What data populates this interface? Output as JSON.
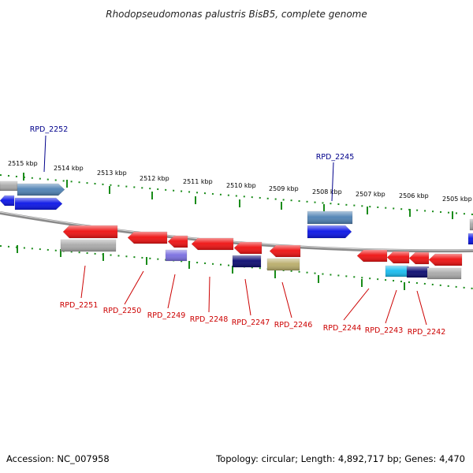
{
  "title": "Rhodopseudomonas palustris BisB5, complete genome",
  "footer": {
    "accession": "Accession: NC_007958",
    "summary": "Topology: circular; Length: 4,892,717 bp; Genes: 4,470"
  },
  "scale_labels": [
    "2515 kbp",
    "2514 kbp",
    "2513 kbp",
    "2512 kbp",
    "2511 kbp",
    "2510 kbp",
    "2509 kbp",
    "2508 kbp",
    "2507 kbp",
    "2506 kbp",
    "2505 kbp"
  ],
  "top_labels": [
    "RPD_2252",
    "RPD_2245"
  ],
  "bottom_labels": [
    "RPD_2251",
    "RPD_2250",
    "RPD_2249",
    "RPD_2248",
    "RPD_2247",
    "RPD_2246",
    "RPD_2244",
    "RPD_2243",
    "RPD_2242"
  ],
  "colors": {
    "red": "#ee1111",
    "blue": "#0a14e6",
    "steel": "#4f82b4",
    "grey": "#a9a9a9",
    "navy": "#0a0a70",
    "purple": "#7a6ee0",
    "olive": "#b9ad6a",
    "cyan": "#19bdf0",
    "backbone": "#8a8a8a",
    "ticks": "#1a8c1a"
  }
}
